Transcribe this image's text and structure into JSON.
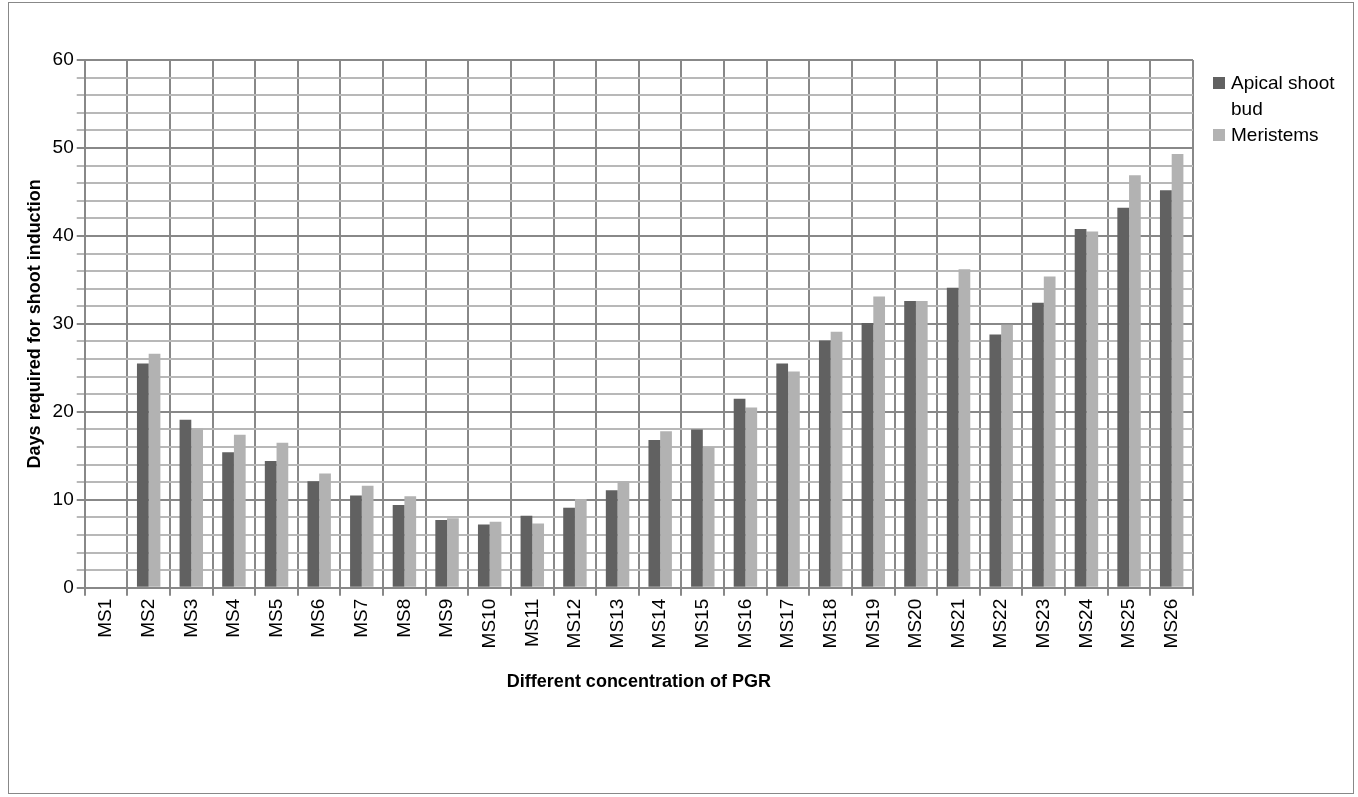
{
  "chart_data": {
    "type": "bar",
    "xlabel": "Different concentration of PGR",
    "ylabel": "Days required for shoot induction",
    "categories": [
      "MS1",
      "MS2",
      "MS3",
      "MS4",
      "MS5",
      "MS6",
      "MS7",
      "MS8",
      "MS9",
      "MS10",
      "MS11",
      "MS12",
      "MS13",
      "MS14",
      "MS15",
      "MS16",
      "MS17",
      "MS18",
      "MS19",
      "MS20",
      "MS21",
      "MS22",
      "MS23",
      "MS24",
      "MS25",
      "MS26"
    ],
    "series": [
      {
        "name": "Apical shoot bud",
        "color": "#616161",
        "values": [
          0,
          25.5,
          19.1,
          15.4,
          14.4,
          12.1,
          10.5,
          9.4,
          7.7,
          7.2,
          8.2,
          9.1,
          11.1,
          16.8,
          18.0,
          21.5,
          25.5,
          28.1,
          30.1,
          32.6,
          34.1,
          28.8,
          32.4,
          40.8,
          43.2,
          45.2
        ]
      },
      {
        "name": "Meristems",
        "color": "#b2b2b2",
        "values": [
          0,
          26.6,
          18.1,
          17.4,
          16.5,
          13.0,
          11.6,
          10.4,
          7.9,
          7.5,
          7.3,
          10.1,
          12.1,
          17.8,
          16.0,
          20.5,
          24.6,
          29.1,
          33.1,
          32.6,
          36.2,
          29.9,
          35.4,
          40.5,
          46.9,
          49.3
        ]
      }
    ],
    "ylim": [
      0,
      60
    ],
    "yticks": [
      0,
      {
        "value": 2,
        "label": null
      },
      {
        "value": 4,
        "label": null
      },
      {
        "value": 6,
        "label": null
      },
      {
        "value": 8,
        "label": null
      },
      10,
      {
        "value": 12,
        "label": null
      },
      {
        "value": 14,
        "label": null
      },
      {
        "value": 16,
        "label": null
      },
      {
        "value": 18,
        "label": null
      },
      20,
      {
        "value": 22,
        "label": null
      },
      {
        "value": 24,
        "label": null
      },
      {
        "value": 26,
        "label": null
      },
      {
        "value": 28,
        "label": null
      },
      30,
      {
        "value": 32,
        "label": null
      },
      {
        "value": 34,
        "label": null
      },
      {
        "value": 36,
        "label": null
      },
      {
        "value": 38,
        "label": null
      },
      40,
      {
        "value": 42,
        "label": null
      },
      {
        "value": 44,
        "label": null
      },
      {
        "value": 46,
        "label": null
      },
      {
        "value": 48,
        "label": null
      },
      50,
      {
        "value": 52,
        "label": null
      },
      {
        "value": 54,
        "label": null
      },
      {
        "value": 56,
        "label": null
      },
      {
        "value": 58,
        "label": null
      },
      60
    ],
    "grid": true,
    "legend": "top right"
  }
}
